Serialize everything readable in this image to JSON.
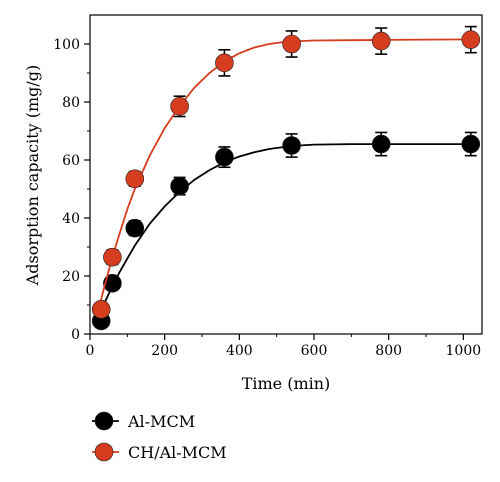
{
  "chart_data": {
    "type": "line",
    "xlabel": "Time (min)",
    "ylabel": "Adsorption capacity (mg/g)",
    "xlim": [
      0,
      1050
    ],
    "ylim": [
      0,
      110
    ],
    "xticks": [
      0,
      200,
      400,
      600,
      800,
      1000
    ],
    "yticks": [
      0,
      20,
      40,
      60,
      80,
      100
    ],
    "grid": false,
    "legend_position": "bottom-left, below plot",
    "x": [
      30,
      60,
      120,
      240,
      360,
      540,
      780,
      1020
    ],
    "series": [
      {
        "name": "Al-MCM",
        "color": "#000000",
        "values": [
          4.5,
          17.5,
          36.5,
          51,
          61,
          65,
          65.5,
          65.5
        ],
        "errors": [
          2,
          2,
          2.5,
          3,
          3.5,
          4,
          4,
          4
        ],
        "fit": [
          [
            20,
            5.5
          ],
          [
            40,
            11
          ],
          [
            60,
            16.5
          ],
          [
            80,
            21.5
          ],
          [
            100,
            26
          ],
          [
            120,
            30.5
          ],
          [
            160,
            38
          ],
          [
            200,
            44
          ],
          [
            240,
            49
          ],
          [
            280,
            53.2
          ],
          [
            320,
            56.5
          ],
          [
            360,
            59.2
          ],
          [
            400,
            61.2
          ],
          [
            440,
            62.7
          ],
          [
            480,
            63.8
          ],
          [
            520,
            64.5
          ],
          [
            560,
            65
          ],
          [
            600,
            65.3
          ],
          [
            700,
            65.5
          ],
          [
            800,
            65.5
          ],
          [
            900,
            65.5
          ],
          [
            1020,
            65.5
          ]
        ]
      },
      {
        "name": "CH/Al-MCM",
        "color": "#d63c1e",
        "values": [
          8.5,
          26.5,
          53.5,
          78.5,
          93.5,
          100,
          101,
          101.5
        ],
        "errors": [
          2,
          2.5,
          2.5,
          3.5,
          4.5,
          4.5,
          4.5,
          4.5
        ],
        "fit": [
          [
            20,
            7
          ],
          [
            40,
            17
          ],
          [
            60,
            26.5
          ],
          [
            80,
            35
          ],
          [
            100,
            43
          ],
          [
            120,
            50
          ],
          [
            160,
            61.5
          ],
          [
            200,
            71
          ],
          [
            240,
            78.5
          ],
          [
            280,
            85
          ],
          [
            320,
            90
          ],
          [
            360,
            94
          ],
          [
            400,
            96.8
          ],
          [
            440,
            98.8
          ],
          [
            480,
            100
          ],
          [
            520,
            100.7
          ],
          [
            560,
            101
          ],
          [
            600,
            101.2
          ],
          [
            700,
            101.3
          ],
          [
            800,
            101.4
          ],
          [
            900,
            101.5
          ],
          [
            1020,
            101.6
          ]
        ]
      }
    ]
  }
}
